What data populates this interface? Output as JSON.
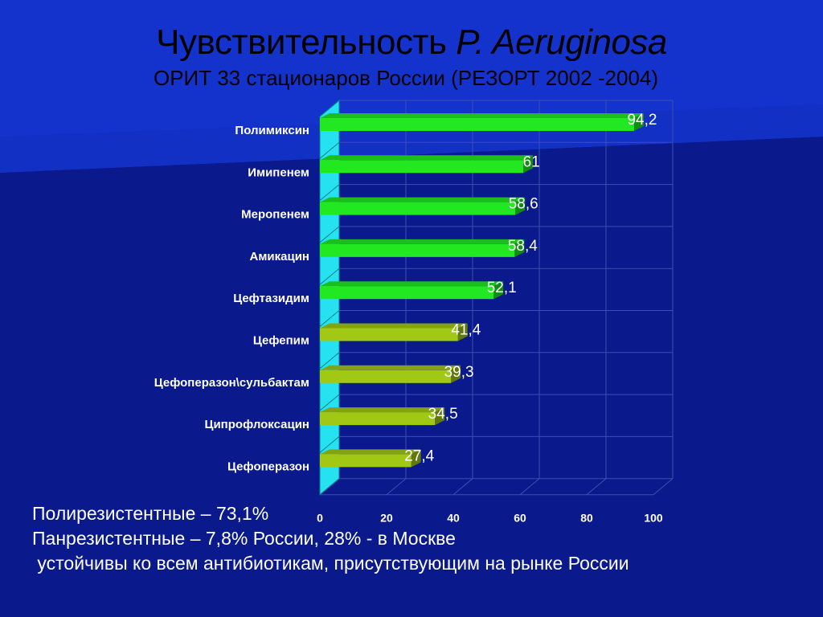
{
  "slide": {
    "title_main": "Чувствительность ",
    "title_italic": "P. Aeruginosa",
    "subtitle": "ОРИТ 33 стационаров России (РЕЗОРТ 2002 -2004)",
    "notes": [
      "Полирезистентные – 73,1%",
      "Панрезистентные – 7,8% России, 28% - в Москве",
      " устойчивы ко всем антибиотикам, присутствующим на рынке России"
    ]
  },
  "colors": {
    "background": "#0a1a8c",
    "background_top": "#1030c8",
    "bright_bar": "#22e822",
    "olive_bar": "#a0c814",
    "wall": "#26e2f0",
    "grid": "#3b4fae",
    "label_text": "#ffffff"
  },
  "chart_data": {
    "type": "bar",
    "orientation": "horizontal",
    "style": "3d",
    "categories": [
      "Полимиксин",
      "Имипенем",
      "Меропенем",
      "Амикацин",
      "Цефтазидим",
      "Цефепим",
      "Цефоперазон\\сульбактам",
      "Ципрофлоксацин",
      "Цефоперазон"
    ],
    "values": [
      94.2,
      61,
      58.6,
      58.4,
      52.1,
      41.4,
      39.3,
      34.5,
      27.4
    ],
    "value_labels": [
      "94,2",
      "61",
      "58,6",
      "58,4",
      "52,1",
      "41,4",
      "39,3",
      "34,5",
      "27,4"
    ],
    "bar_colors": [
      "#22e822",
      "#22e822",
      "#22e822",
      "#22e822",
      "#22e822",
      "#a0c814",
      "#a0c814",
      "#a0c814",
      "#a0c814"
    ],
    "xlim": [
      0,
      100
    ],
    "x_ticks": [
      0,
      20,
      40,
      60,
      80,
      100
    ],
    "grid": true,
    "legend": "none"
  }
}
